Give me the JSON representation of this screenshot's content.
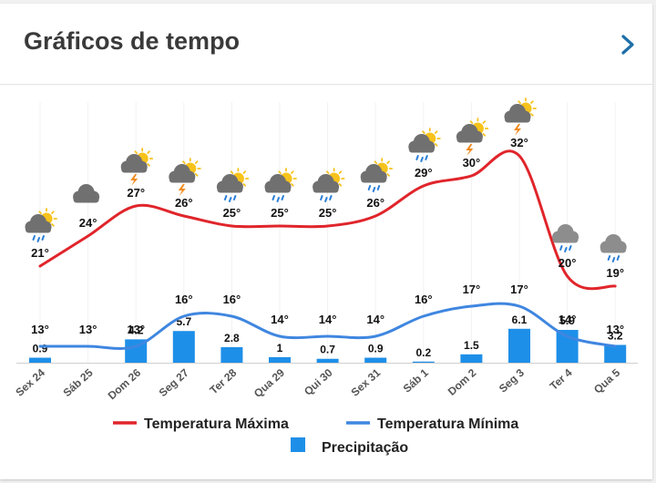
{
  "header": {
    "title": "Gráficos de tempo"
  },
  "colors": {
    "max": "#e0252b",
    "min": "#3f86e0",
    "precip": "#1e8fe8"
  },
  "chart_data": {
    "type": "line",
    "categories": [
      "Sex 24",
      "Sáb 25",
      "Dom 26",
      "Seg 27",
      "Ter 28",
      "Qua 29",
      "Qui 30",
      "Sex 31",
      "Sáb 1",
      "Dom 2",
      "Seg 3",
      "Ter 4",
      "Qua 5"
    ],
    "series": [
      {
        "name": "Temperatura Máxima",
        "values": [
          21,
          24,
          27,
          26,
          25,
          25,
          25,
          26,
          29,
          30,
          32,
          20,
          19
        ],
        "labels": [
          "21°",
          "24°",
          "27°",
          "26°",
          "25°",
          "25°",
          "25°",
          "26°",
          "29°",
          "30°",
          "32°",
          "20°",
          "19°"
        ]
      },
      {
        "name": "Temperatura Mínima",
        "values": [
          13,
          13,
          13,
          16,
          16,
          14,
          14,
          14,
          16,
          17,
          17,
          14,
          13
        ],
        "labels": [
          "13°",
          "13°",
          "13°",
          "16°",
          "16°",
          "14°",
          "14°",
          "14°",
          "16°",
          "17°",
          "17°",
          "14°",
          "13°"
        ]
      },
      {
        "name": "Precipitação",
        "type": "bar",
        "values": [
          0.9,
          0,
          4.2,
          5.7,
          2.8,
          1,
          0.7,
          0.9,
          0.2,
          1.5,
          6.1,
          5.9,
          3.2
        ],
        "labels": [
          "0.9",
          "",
          "4.2",
          "5.7",
          "2.8",
          "1",
          "0.7",
          "0.9",
          "0.2",
          "1.5",
          "6.1",
          "5.9",
          "3.2"
        ]
      }
    ],
    "icons": [
      "sun-cloud-rain-icon",
      "cloud-icon",
      "sun-cloud-storm-icon",
      "sun-cloud-storm-icon",
      "sun-cloud-rain-icon",
      "sun-cloud-rain-icon",
      "sun-cloud-rain-icon",
      "sun-cloud-rain-icon",
      "sun-cloud-rain-icon",
      "sun-cloud-storm-icon",
      "sun-cloud-storm-icon",
      "cloud-rain-icon",
      "cloud-rain-icon"
    ],
    "legend": [
      "Temperatura Máxima",
      "Temperatura Mínima",
      "Precipitação"
    ],
    "legend_position": "bottom"
  }
}
